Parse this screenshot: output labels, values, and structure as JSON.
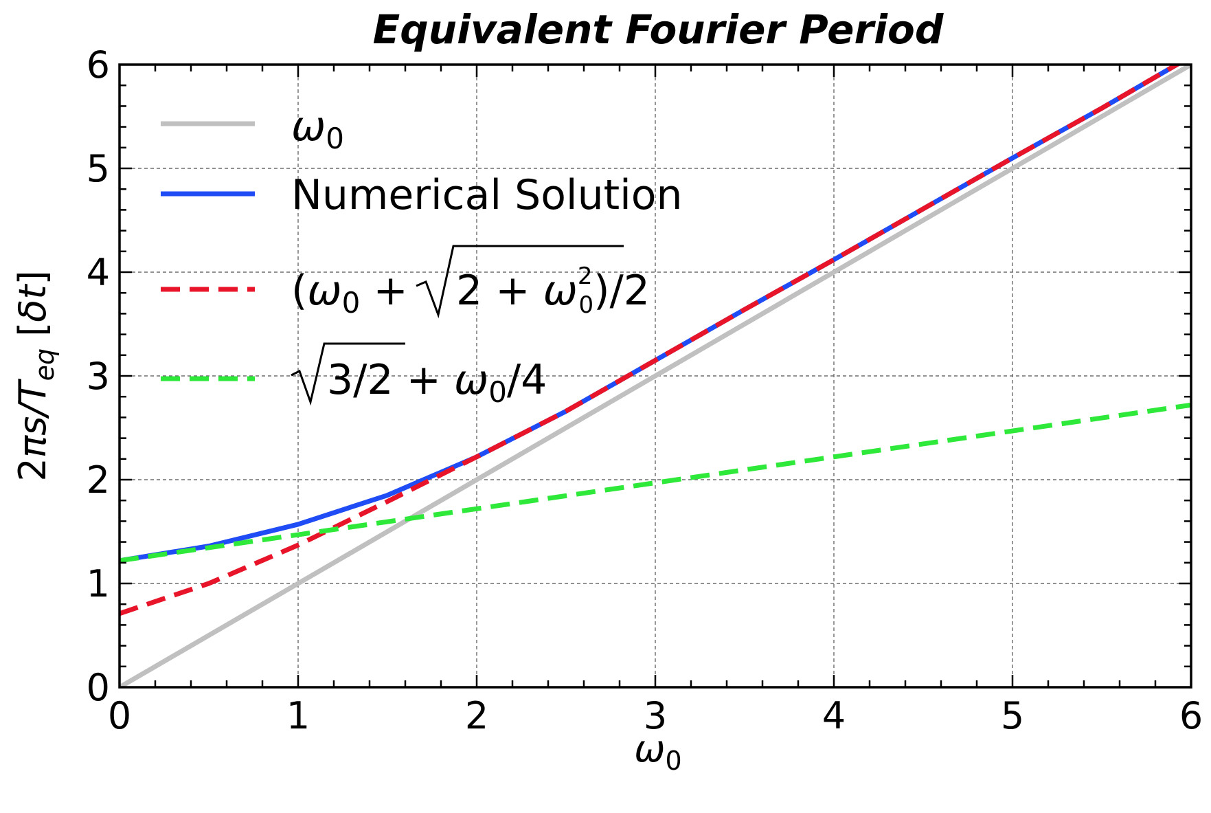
{
  "chart_data": {
    "type": "line",
    "title": "Equivalent Fourier Period",
    "xlabel": "ω0",
    "ylabel": "2πs/Teq [δt]",
    "xlim": [
      0,
      6
    ],
    "ylim": [
      0,
      6
    ],
    "xticks": [
      "0",
      "1",
      "2",
      "3",
      "4",
      "5",
      "6"
    ],
    "yticks": [
      "0",
      "1",
      "2",
      "3",
      "4",
      "5",
      "6"
    ],
    "grid": true,
    "legend_position": "upper-left",
    "series": [
      {
        "name": "ω0",
        "color": "#c0c0c0",
        "style": "solid",
        "x": [
          0,
          1,
          2,
          3,
          4,
          5,
          6
        ],
        "y": [
          0,
          1,
          2,
          3,
          4,
          5,
          6
        ]
      },
      {
        "name": "Numerical Solution",
        "color": "#1f4cf5",
        "style": "solid",
        "x": [
          0,
          0.5,
          1,
          1.5,
          2,
          2.5,
          3,
          3.5,
          4,
          4.5,
          5,
          5.5,
          6
        ],
        "y": [
          1.22,
          1.36,
          1.57,
          1.85,
          2.22,
          2.66,
          3.15,
          3.64,
          4.12,
          4.61,
          5.1,
          5.58,
          6.08
        ]
      },
      {
        "name": "(ω0 + √(2 + ω0²))/2",
        "color": "#e8152a",
        "style": "dashed",
        "x": [
          0,
          0.5,
          1,
          1.5,
          2,
          2.5,
          3,
          3.5,
          4,
          4.5,
          5,
          5.5,
          6
        ],
        "y": [
          0.71,
          1.0,
          1.37,
          1.79,
          2.22,
          2.66,
          3.15,
          3.64,
          4.12,
          4.61,
          5.1,
          5.58,
          6.08
        ]
      },
      {
        "name": "√(3/2) + ω0/4",
        "color": "#2ee83a",
        "style": "dashed",
        "x": [
          0,
          1,
          2,
          3,
          4,
          5,
          6
        ],
        "y": [
          1.22,
          1.47,
          1.72,
          1.97,
          2.22,
          2.47,
          2.72
        ]
      }
    ]
  }
}
